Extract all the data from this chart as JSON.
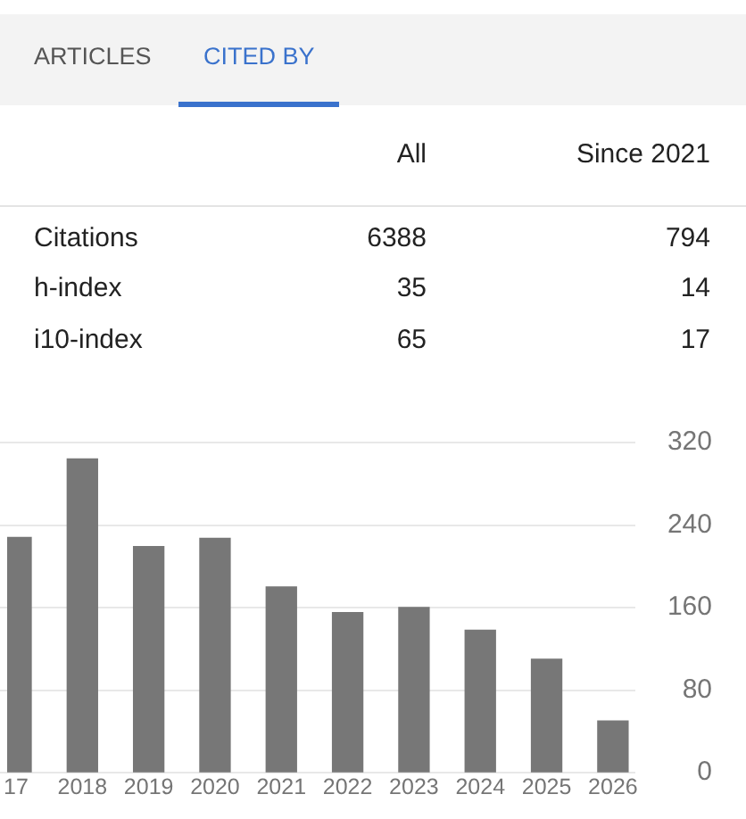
{
  "chart_data": [
    {
      "type": "other",
      "annotations": [
        "ARTICLES",
        "CITED BY",
        "All",
        "Since 2021",
        "Citations",
        "6388",
        "794",
        "h-index",
        "35",
        "14",
        "i10-index",
        "65",
        "17"
      ]
    },
    {
      "type": "bar",
      "categories": [
        "17",
        "2018",
        "2019",
        "2020",
        "2021",
        "2022",
        "2023",
        "2024",
        "2025",
        "2026"
      ],
      "values": [
        228,
        304,
        219,
        227,
        180,
        155,
        160,
        138,
        110,
        50
      ],
      "color": "#777777",
      "ylim": [
        0,
        320
      ],
      "yticks": [
        0,
        80,
        160,
        240,
        320
      ],
      "grid": "y"
    }
  ]
}
